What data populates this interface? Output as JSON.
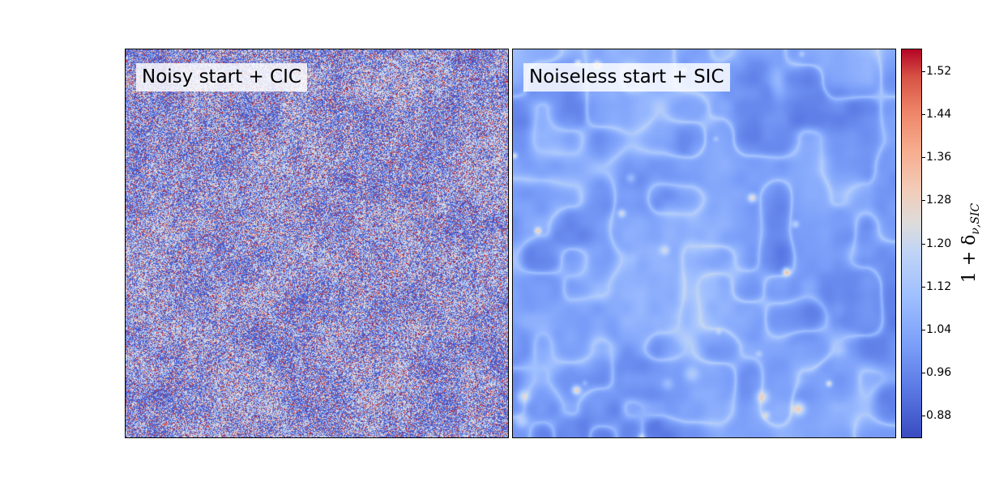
{
  "panels": [
    {
      "label": "Noisy start + CIC",
      "kind": "noisy"
    },
    {
      "label": "Noiseless start + SIC",
      "kind": "smooth"
    }
  ],
  "colorbar": {
    "colormap": "coolwarm",
    "range": [
      0.84,
      1.56
    ],
    "ticks": [
      "1.52",
      "1.44",
      "1.36",
      "1.28",
      "1.20",
      "1.12",
      "1.04",
      "0.96",
      "0.88"
    ],
    "tick_values": [
      1.52,
      1.44,
      1.36,
      1.28,
      1.2,
      1.12,
      1.04,
      0.96,
      0.88
    ],
    "label_prefix": "1 + δ",
    "label_subscript": "ν,SIC"
  }
}
